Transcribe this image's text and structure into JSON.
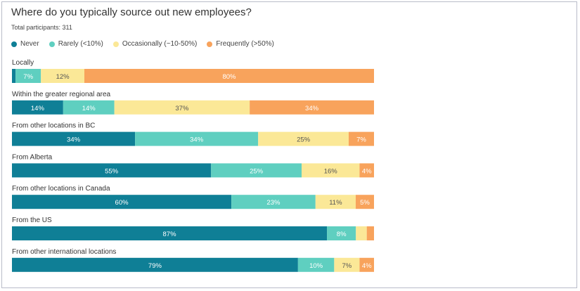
{
  "chart_data": {
    "type": "bar",
    "orientation": "horizontal",
    "stacked": true,
    "title": "Where do you typically source out new employees?",
    "subtitle": "Total participants: 311",
    "legend_position": "top-left",
    "grid": false,
    "xlim": [
      0,
      100
    ],
    "categories": [
      "Locally",
      "Within the greater regional area",
      "From other locations in BC",
      "From Alberta",
      "From other locations in Canada",
      "From the US",
      "From other international locations"
    ],
    "series": [
      {
        "name": "Never",
        "color": "#0f7f96",
        "label_color": "#ffffff",
        "values": [
          1,
          14,
          34,
          55,
          60,
          87,
          79
        ],
        "labels": [
          "",
          "14%",
          "34%",
          "55%",
          "60%",
          "87%",
          "79%"
        ]
      },
      {
        "name": "Rarely (<10%)",
        "color": "#5fcfc0",
        "label_color": "#ffffff",
        "values": [
          7,
          14,
          34,
          25,
          23,
          8,
          10
        ],
        "labels": [
          "7%",
          "14%",
          "34%",
          "25%",
          "23%",
          "8%",
          "10%"
        ]
      },
      {
        "name": "Occasionally (~10-50%)",
        "color": "#fbe897",
        "label_color": "#555555",
        "values": [
          12,
          37,
          25,
          16,
          11,
          3,
          7
        ],
        "labels": [
          "12%",
          "37%",
          "25%",
          "16%",
          "11%",
          "",
          "7%"
        ]
      },
      {
        "name": "Frequently (>50%)",
        "color": "#f8a35c",
        "label_color": "#ffffff",
        "values": [
          80,
          34,
          7,
          4,
          5,
          2,
          4
        ],
        "labels": [
          "80%",
          "34%",
          "7%",
          "4%",
          "5%",
          "",
          "4%"
        ]
      }
    ]
  }
}
